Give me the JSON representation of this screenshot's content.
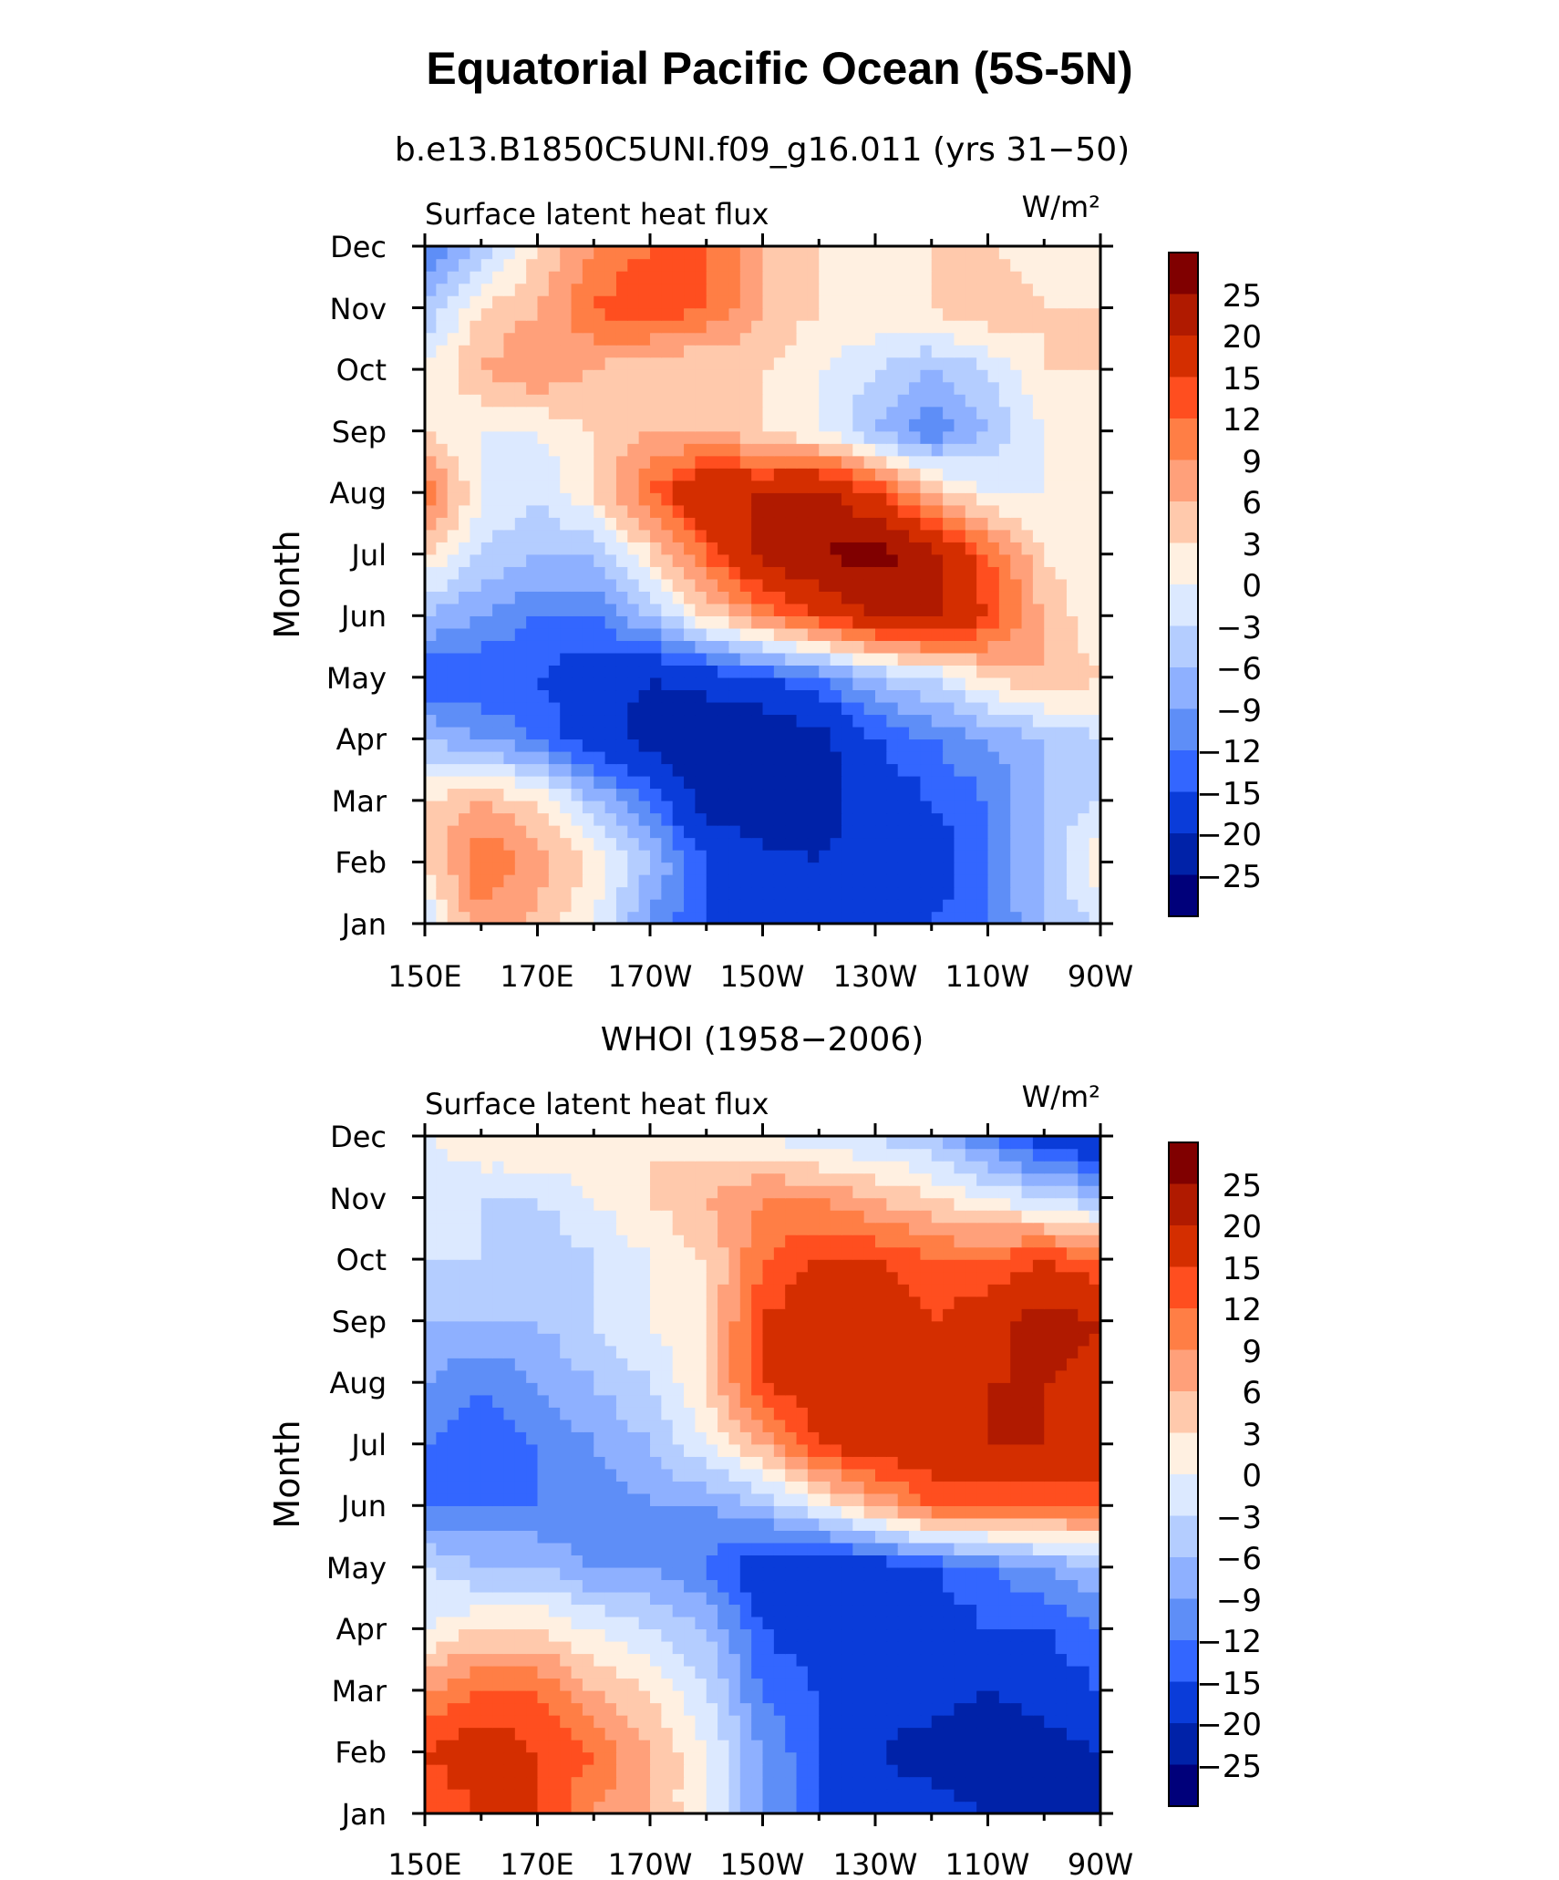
{
  "title": "Equatorial Pacific Ocean (5S-5N)",
  "colorbar": {
    "labels": [
      "25",
      "20",
      "15",
      "12",
      "9",
      "6",
      "3",
      "0",
      "−3",
      "−6",
      "−9",
      "−12",
      "−15",
      "−20",
      "−25"
    ],
    "colors": [
      "#800000",
      "#b01a00",
      "#d42e00",
      "#ff4e1f",
      "#ff7e45",
      "#ffa07a",
      "#ffc9ac",
      "#fff0e1",
      "#dce9ff",
      "#b4cdff",
      "#8eb0ff",
      "#5e8ef7",
      "#3366ff",
      "#0a3cd9",
      "#0022a8",
      "#00007a"
    ]
  },
  "chart_data": [
    {
      "type": "heatmap",
      "subtitle": "b.e13.B1850C5UNI.f09_g16.011 (yrs 31−50)",
      "left_label": "Surface latent heat flux",
      "units": "W/m²",
      "ylabel": "Month",
      "x_ticks": [
        "150E",
        "170E",
        "170W",
        "150W",
        "130W",
        "110W",
        "90W"
      ],
      "y_ticks": [
        "Jan",
        "Feb",
        "Mar",
        "Apr",
        "May",
        "Jun",
        "Jul",
        "Aug",
        "Sep",
        "Oct",
        "Nov",
        "Dec"
      ],
      "x_lon": [
        150,
        160,
        170,
        180,
        190,
        200,
        210,
        220,
        230,
        240,
        250,
        260,
        270
      ],
      "z": [
        [
          -3,
          8,
          5,
          0,
          -10,
          -15,
          -15,
          -18,
          -18,
          -15,
          -12,
          -6,
          -3
        ],
        [
          3,
          12,
          8,
          2,
          -6,
          -15,
          -18,
          -20,
          -18,
          -18,
          -12,
          -6,
          3
        ],
        [
          3,
          6,
          3,
          -6,
          -12,
          -22,
          -25,
          -22,
          -18,
          -15,
          -12,
          -6,
          -3
        ],
        [
          -6,
          -9,
          -12,
          -18,
          -22,
          -25,
          -25,
          -22,
          -15,
          -12,
          -9,
          -6,
          -3
        ],
        [
          -15,
          -15,
          -15,
          -18,
          -20,
          -18,
          -15,
          -12,
          -6,
          -3,
          3,
          6,
          3
        ],
        [
          -6,
          -9,
          -12,
          -12,
          -6,
          3,
          9,
          15,
          20,
          22,
          15,
          6,
          0
        ],
        [
          3,
          -3,
          -6,
          -6,
          3,
          12,
          22,
          25,
          27,
          22,
          12,
          3,
          0
        ],
        [
          12,
          0,
          -3,
          3,
          12,
          20,
          20,
          22,
          15,
          6,
          0,
          0,
          0
        ],
        [
          3,
          0,
          0,
          3,
          6,
          6,
          3,
          0,
          -6,
          -12,
          -6,
          0,
          0
        ],
        [
          0,
          6,
          9,
          6,
          3,
          3,
          3,
          0,
          -3,
          -6,
          -3,
          3,
          3
        ],
        [
          -6,
          3,
          6,
          12,
          15,
          12,
          6,
          3,
          3,
          3,
          6,
          3,
          3
        ],
        [
          -12,
          -6,
          3,
          9,
          12,
          12,
          6,
          3,
          0,
          3,
          3,
          0,
          3
        ]
      ]
    },
    {
      "type": "heatmap",
      "subtitle": "WHOI (1958−2006)",
      "left_label": "Surface latent heat flux",
      "units": "W/m²",
      "ylabel": "Month",
      "x_ticks": [
        "150E",
        "170E",
        "170W",
        "150W",
        "130W",
        "110W",
        "90W"
      ],
      "y_ticks": [
        "Jan",
        "Feb",
        "Mar",
        "Apr",
        "May",
        "Jun",
        "Jul",
        "Aug",
        "Sep",
        "Oct",
        "Nov",
        "Dec"
      ],
      "x_lon": [
        150,
        160,
        170,
        180,
        190,
        200,
        210,
        220,
        230,
        240,
        250,
        260,
        270
      ],
      "z": [
        [
          12,
          15,
          15,
          9,
          6,
          0,
          -9,
          -15,
          -18,
          -18,
          -20,
          -25,
          -25
        ],
        [
          15,
          18,
          15,
          12,
          6,
          0,
          -9,
          -15,
          -20,
          -22,
          -25,
          -22,
          -20
        ],
        [
          9,
          12,
          12,
          6,
          3,
          -3,
          -12,
          -15,
          -18,
          -18,
          -20,
          -18,
          -15
        ],
        [
          0,
          3,
          3,
          0,
          -3,
          -6,
          -15,
          -18,
          -15,
          -18,
          -15,
          -15,
          -12
        ],
        [
          -3,
          -6,
          -6,
          -9,
          -9,
          -12,
          -18,
          -20,
          -18,
          -15,
          -12,
          -9,
          -6
        ],
        [
          -12,
          -12,
          -12,
          -12,
          -9,
          -9,
          -6,
          0,
          6,
          12,
          12,
          12,
          12
        ],
        [
          -12,
          -15,
          -12,
          -9,
          -6,
          0,
          6,
          15,
          18,
          18,
          20,
          20,
          18
        ],
        [
          -9,
          -12,
          -9,
          -6,
          -3,
          3,
          15,
          18,
          20,
          18,
          20,
          20,
          18
        ],
        [
          -6,
          -6,
          -6,
          -3,
          0,
          3,
          15,
          18,
          18,
          15,
          18,
          22,
          20
        ],
        [
          -3,
          -3,
          -6,
          -3,
          0,
          3,
          12,
          15,
          15,
          12,
          12,
          15,
          12
        ],
        [
          -3,
          -3,
          -3,
          0,
          3,
          6,
          9,
          9,
          6,
          3,
          0,
          -3,
          -6
        ],
        [
          0,
          3,
          3,
          3,
          3,
          0,
          0,
          -3,
          -3,
          -6,
          -12,
          -18,
          -20
        ]
      ]
    }
  ]
}
